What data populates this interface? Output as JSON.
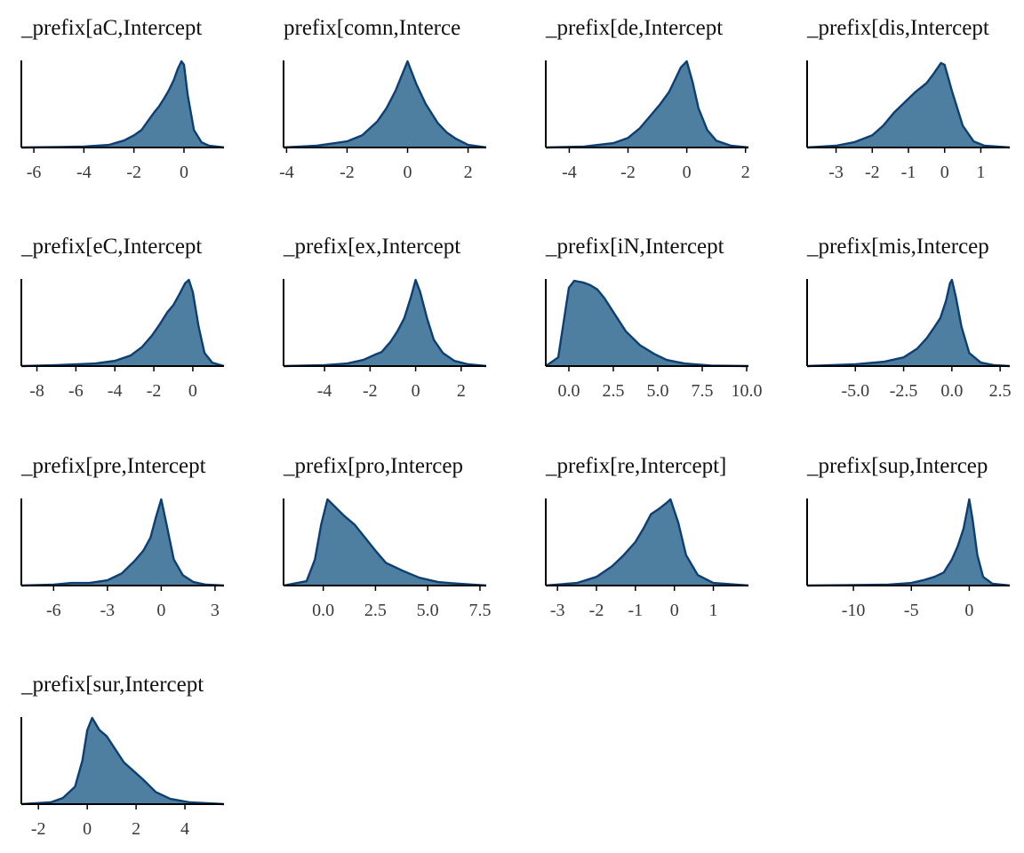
{
  "colors": {
    "fill": "#4e7fa0",
    "line": "#0d3f73",
    "axis": "#000000"
  },
  "chart_data": [
    {
      "type": "area",
      "title": "_prefix[aC,Intercept",
      "xlim": [
        -6.5,
        1.6
      ],
      "xticks": [
        -6,
        -4,
        -2,
        0
      ],
      "xtick_labels": [
        "-6",
        "-4",
        "-2",
        "0"
      ],
      "x": [
        -6.5,
        -5,
        -4,
        -3,
        -2.4,
        -2,
        -1.7,
        -1.4,
        -1.2,
        -1.0,
        -0.8,
        -0.6,
        -0.4,
        -0.25,
        -0.1,
        0.0,
        0.15,
        0.4,
        0.7,
        1.0,
        1.6
      ],
      "y": [
        0,
        0.005,
        0.01,
        0.03,
        0.08,
        0.14,
        0.2,
        0.32,
        0.4,
        0.47,
        0.56,
        0.66,
        0.78,
        0.9,
        0.99,
        0.95,
        0.6,
        0.2,
        0.06,
        0.02,
        0
      ]
    },
    {
      "type": "area",
      "title": "prefix[comn,Interce",
      "xlim": [
        -4.1,
        2.6
      ],
      "xticks": [
        -4,
        -2,
        0,
        2
      ],
      "xtick_labels": [
        "-4",
        "-2",
        "0",
        "2"
      ],
      "x": [
        -4.1,
        -3,
        -2,
        -1.5,
        -1,
        -0.7,
        -0.4,
        -0.2,
        0,
        0.1,
        0.3,
        0.6,
        1.0,
        1.3,
        1.6,
        2.0,
        2.6
      ],
      "y": [
        0,
        0.02,
        0.07,
        0.14,
        0.3,
        0.45,
        0.65,
        0.82,
        0.99,
        0.9,
        0.72,
        0.5,
        0.28,
        0.17,
        0.1,
        0.03,
        0
      ]
    },
    {
      "type": "area",
      "title": "_prefix[de,Intercept",
      "xlim": [
        -4.8,
        2.1
      ],
      "xticks": [
        -4,
        -2,
        0,
        2
      ],
      "xtick_labels": [
        "-4",
        "-2",
        "0",
        "2"
      ],
      "x": [
        -4.8,
        -3.5,
        -2.5,
        -2,
        -1.6,
        -1.2,
        -0.9,
        -0.6,
        -0.4,
        -0.2,
        0,
        0.2,
        0.4,
        0.7,
        1.0,
        1.5,
        2.1
      ],
      "y": [
        0,
        0.01,
        0.05,
        0.11,
        0.22,
        0.38,
        0.5,
        0.64,
        0.78,
        0.92,
        0.99,
        0.75,
        0.45,
        0.2,
        0.08,
        0.02,
        0
      ]
    },
    {
      "type": "area",
      "title": "_prefix[dis,Intercept",
      "xlim": [
        -3.8,
        1.8
      ],
      "xticks": [
        -3,
        -2,
        -1,
        0,
        1
      ],
      "xtick_labels": [
        "-3",
        "-2",
        "-1",
        "0",
        "1"
      ],
      "x": [
        -3.8,
        -3,
        -2.5,
        -2,
        -1.7,
        -1.4,
        -1.1,
        -0.8,
        -0.5,
        -0.3,
        -0.1,
        0,
        0.2,
        0.5,
        0.8,
        1.1,
        1.8
      ],
      "y": [
        0,
        0.02,
        0.06,
        0.14,
        0.25,
        0.4,
        0.52,
        0.64,
        0.74,
        0.85,
        0.97,
        0.95,
        0.65,
        0.25,
        0.07,
        0.02,
        0
      ]
    },
    {
      "type": "area",
      "title": "_prefix[eC,Intercept",
      "xlim": [
        -8.8,
        1.6
      ],
      "xticks": [
        -8,
        -6,
        -4,
        -2,
        0
      ],
      "xtick_labels": [
        "-8",
        "-6",
        "-4",
        "-2",
        "0"
      ],
      "x": [
        -8.8,
        -7,
        -5,
        -4,
        -3.2,
        -2.6,
        -2.1,
        -1.7,
        -1.3,
        -1.0,
        -0.7,
        -0.4,
        -0.2,
        0,
        0.3,
        0.6,
        1.0,
        1.6
      ],
      "y": [
        0,
        0.01,
        0.03,
        0.06,
        0.12,
        0.22,
        0.35,
        0.48,
        0.62,
        0.7,
        0.82,
        0.95,
        0.99,
        0.85,
        0.45,
        0.15,
        0.04,
        0
      ]
    },
    {
      "type": "area",
      "title": "_prefix[ex,Intercept",
      "xlim": [
        -5.8,
        3.1
      ],
      "xticks": [
        -4,
        -2,
        0,
        2
      ],
      "xtick_labels": [
        "-4",
        "-2",
        "0",
        "2"
      ],
      "x": [
        -5.8,
        -4,
        -3,
        -2.3,
        -1.8,
        -1.5,
        -1.1,
        -0.8,
        -0.5,
        -0.2,
        0,
        0.2,
        0.5,
        0.8,
        1.2,
        1.7,
        2.3,
        3.1
      ],
      "y": [
        0,
        0.01,
        0.03,
        0.07,
        0.13,
        0.16,
        0.28,
        0.4,
        0.55,
        0.8,
        0.99,
        0.85,
        0.55,
        0.3,
        0.15,
        0.06,
        0.02,
        0
      ]
    },
    {
      "type": "area",
      "title": "_prefix[iN,Intercept",
      "xlim": [
        -1.3,
        10.1
      ],
      "xticks": [
        0,
        2.5,
        5,
        7.5,
        10
      ],
      "xtick_labels": [
        "0.0",
        "2.5",
        "5.0",
        "7.5",
        "10.0"
      ],
      "x": [
        -1.3,
        -0.6,
        -0.3,
        0,
        0.3,
        0.8,
        1.2,
        1.6,
        2.0,
        2.5,
        3.2,
        4.0,
        4.8,
        5.5,
        6.5,
        8,
        10.1
      ],
      "y": [
        0,
        0.1,
        0.5,
        0.9,
        0.98,
        0.96,
        0.93,
        0.88,
        0.78,
        0.62,
        0.4,
        0.24,
        0.14,
        0.07,
        0.03,
        0.005,
        0
      ]
    },
    {
      "type": "area",
      "title": "_prefix[mis,Intercep",
      "xlim": [
        -7.5,
        3.0
      ],
      "xticks": [
        -5,
        -2.5,
        0,
        2.5
      ],
      "xtick_labels": [
        "-5.0",
        "-2.5",
        "0.0",
        "2.5"
      ],
      "x": [
        -7.5,
        -5,
        -3.5,
        -2.5,
        -1.8,
        -1.3,
        -0.9,
        -0.6,
        -0.3,
        -0.1,
        0,
        0.2,
        0.5,
        0.9,
        1.5,
        2.2,
        3.0
      ],
      "y": [
        0,
        0.02,
        0.05,
        0.1,
        0.2,
        0.32,
        0.45,
        0.55,
        0.75,
        0.95,
        0.99,
        0.8,
        0.45,
        0.15,
        0.04,
        0.01,
        0
      ]
    },
    {
      "type": "area",
      "title": "_prefix[pre,Intercept",
      "xlim": [
        -7.8,
        3.5
      ],
      "xticks": [
        -6,
        -3,
        0,
        3
      ],
      "xtick_labels": [
        "-6",
        "-3",
        "0",
        "3"
      ],
      "x": [
        -7.8,
        -6,
        -5,
        -4,
        -3,
        -2.2,
        -1.5,
        -1.0,
        -0.6,
        -0.3,
        0,
        0.3,
        0.7,
        1.2,
        1.8,
        2.5,
        3.5
      ],
      "y": [
        0,
        0.01,
        0.03,
        0.03,
        0.06,
        0.14,
        0.28,
        0.4,
        0.55,
        0.78,
        0.99,
        0.7,
        0.3,
        0.12,
        0.04,
        0.01,
        0
      ]
    },
    {
      "type": "area",
      "title": "_prefix[pro,Intercep",
      "xlim": [
        -1.9,
        7.8
      ],
      "xticks": [
        0,
        2.5,
        5,
        7.5
      ],
      "xtick_labels": [
        "0.0",
        "2.5",
        "5.0",
        "7.5"
      ],
      "x": [
        -1.9,
        -0.8,
        -0.4,
        -0.1,
        0.2,
        0.5,
        1.0,
        1.5,
        2.0,
        2.5,
        3.0,
        3.8,
        4.6,
        5.5,
        6.5,
        7.8
      ],
      "y": [
        0,
        0.05,
        0.3,
        0.7,
        0.99,
        0.92,
        0.8,
        0.7,
        0.55,
        0.4,
        0.26,
        0.17,
        0.09,
        0.04,
        0.02,
        0
      ]
    },
    {
      "type": "area",
      "title": "_prefix[re,Intercept]",
      "xlim": [
        -3.3,
        1.9
      ],
      "xticks": [
        -3,
        -2,
        -1,
        0,
        1
      ],
      "xtick_labels": [
        "-3",
        "-2",
        "-1",
        "0",
        "1"
      ],
      "x": [
        -3.3,
        -2.5,
        -2,
        -1.6,
        -1.3,
        -1.0,
        -0.8,
        -0.6,
        -0.4,
        -0.2,
        -0.1,
        0.1,
        0.3,
        0.6,
        1.0,
        1.9
      ],
      "y": [
        0,
        0.03,
        0.1,
        0.22,
        0.35,
        0.5,
        0.65,
        0.82,
        0.88,
        0.95,
        0.99,
        0.72,
        0.35,
        0.12,
        0.03,
        0
      ]
    },
    {
      "type": "area",
      "title": "_prefix[sup,Intercep",
      "xlim": [
        -14,
        3.5
      ],
      "xticks": [
        -10,
        -5,
        0
      ],
      "xtick_labels": [
        "-10",
        "-5",
        "0"
      ],
      "x": [
        -14,
        -10,
        -7,
        -5,
        -4,
        -3,
        -2.2,
        -1.5,
        -1,
        -0.5,
        -0.2,
        0,
        0.3,
        0.7,
        1.2,
        2,
        3.5
      ],
      "y": [
        0,
        0.005,
        0.01,
        0.03,
        0.06,
        0.1,
        0.15,
        0.3,
        0.45,
        0.65,
        0.85,
        0.99,
        0.75,
        0.35,
        0.1,
        0.02,
        0
      ]
    },
    {
      "type": "area",
      "title": "_prefix[sur,Intercept",
      "xlim": [
        -2.7,
        5.6
      ],
      "xticks": [
        -2,
        0,
        2,
        4
      ],
      "xtick_labels": [
        "-2",
        "0",
        "2",
        "4"
      ],
      "x": [
        -2.7,
        -1.5,
        -1,
        -0.5,
        -0.2,
        0,
        0.2,
        0.5,
        0.8,
        1.1,
        1.5,
        1.9,
        2.3,
        2.8,
        3.4,
        4.2,
        5.6
      ],
      "y": [
        0,
        0.02,
        0.07,
        0.2,
        0.5,
        0.85,
        0.99,
        0.85,
        0.78,
        0.65,
        0.48,
        0.38,
        0.28,
        0.14,
        0.06,
        0.02,
        0
      ]
    }
  ]
}
